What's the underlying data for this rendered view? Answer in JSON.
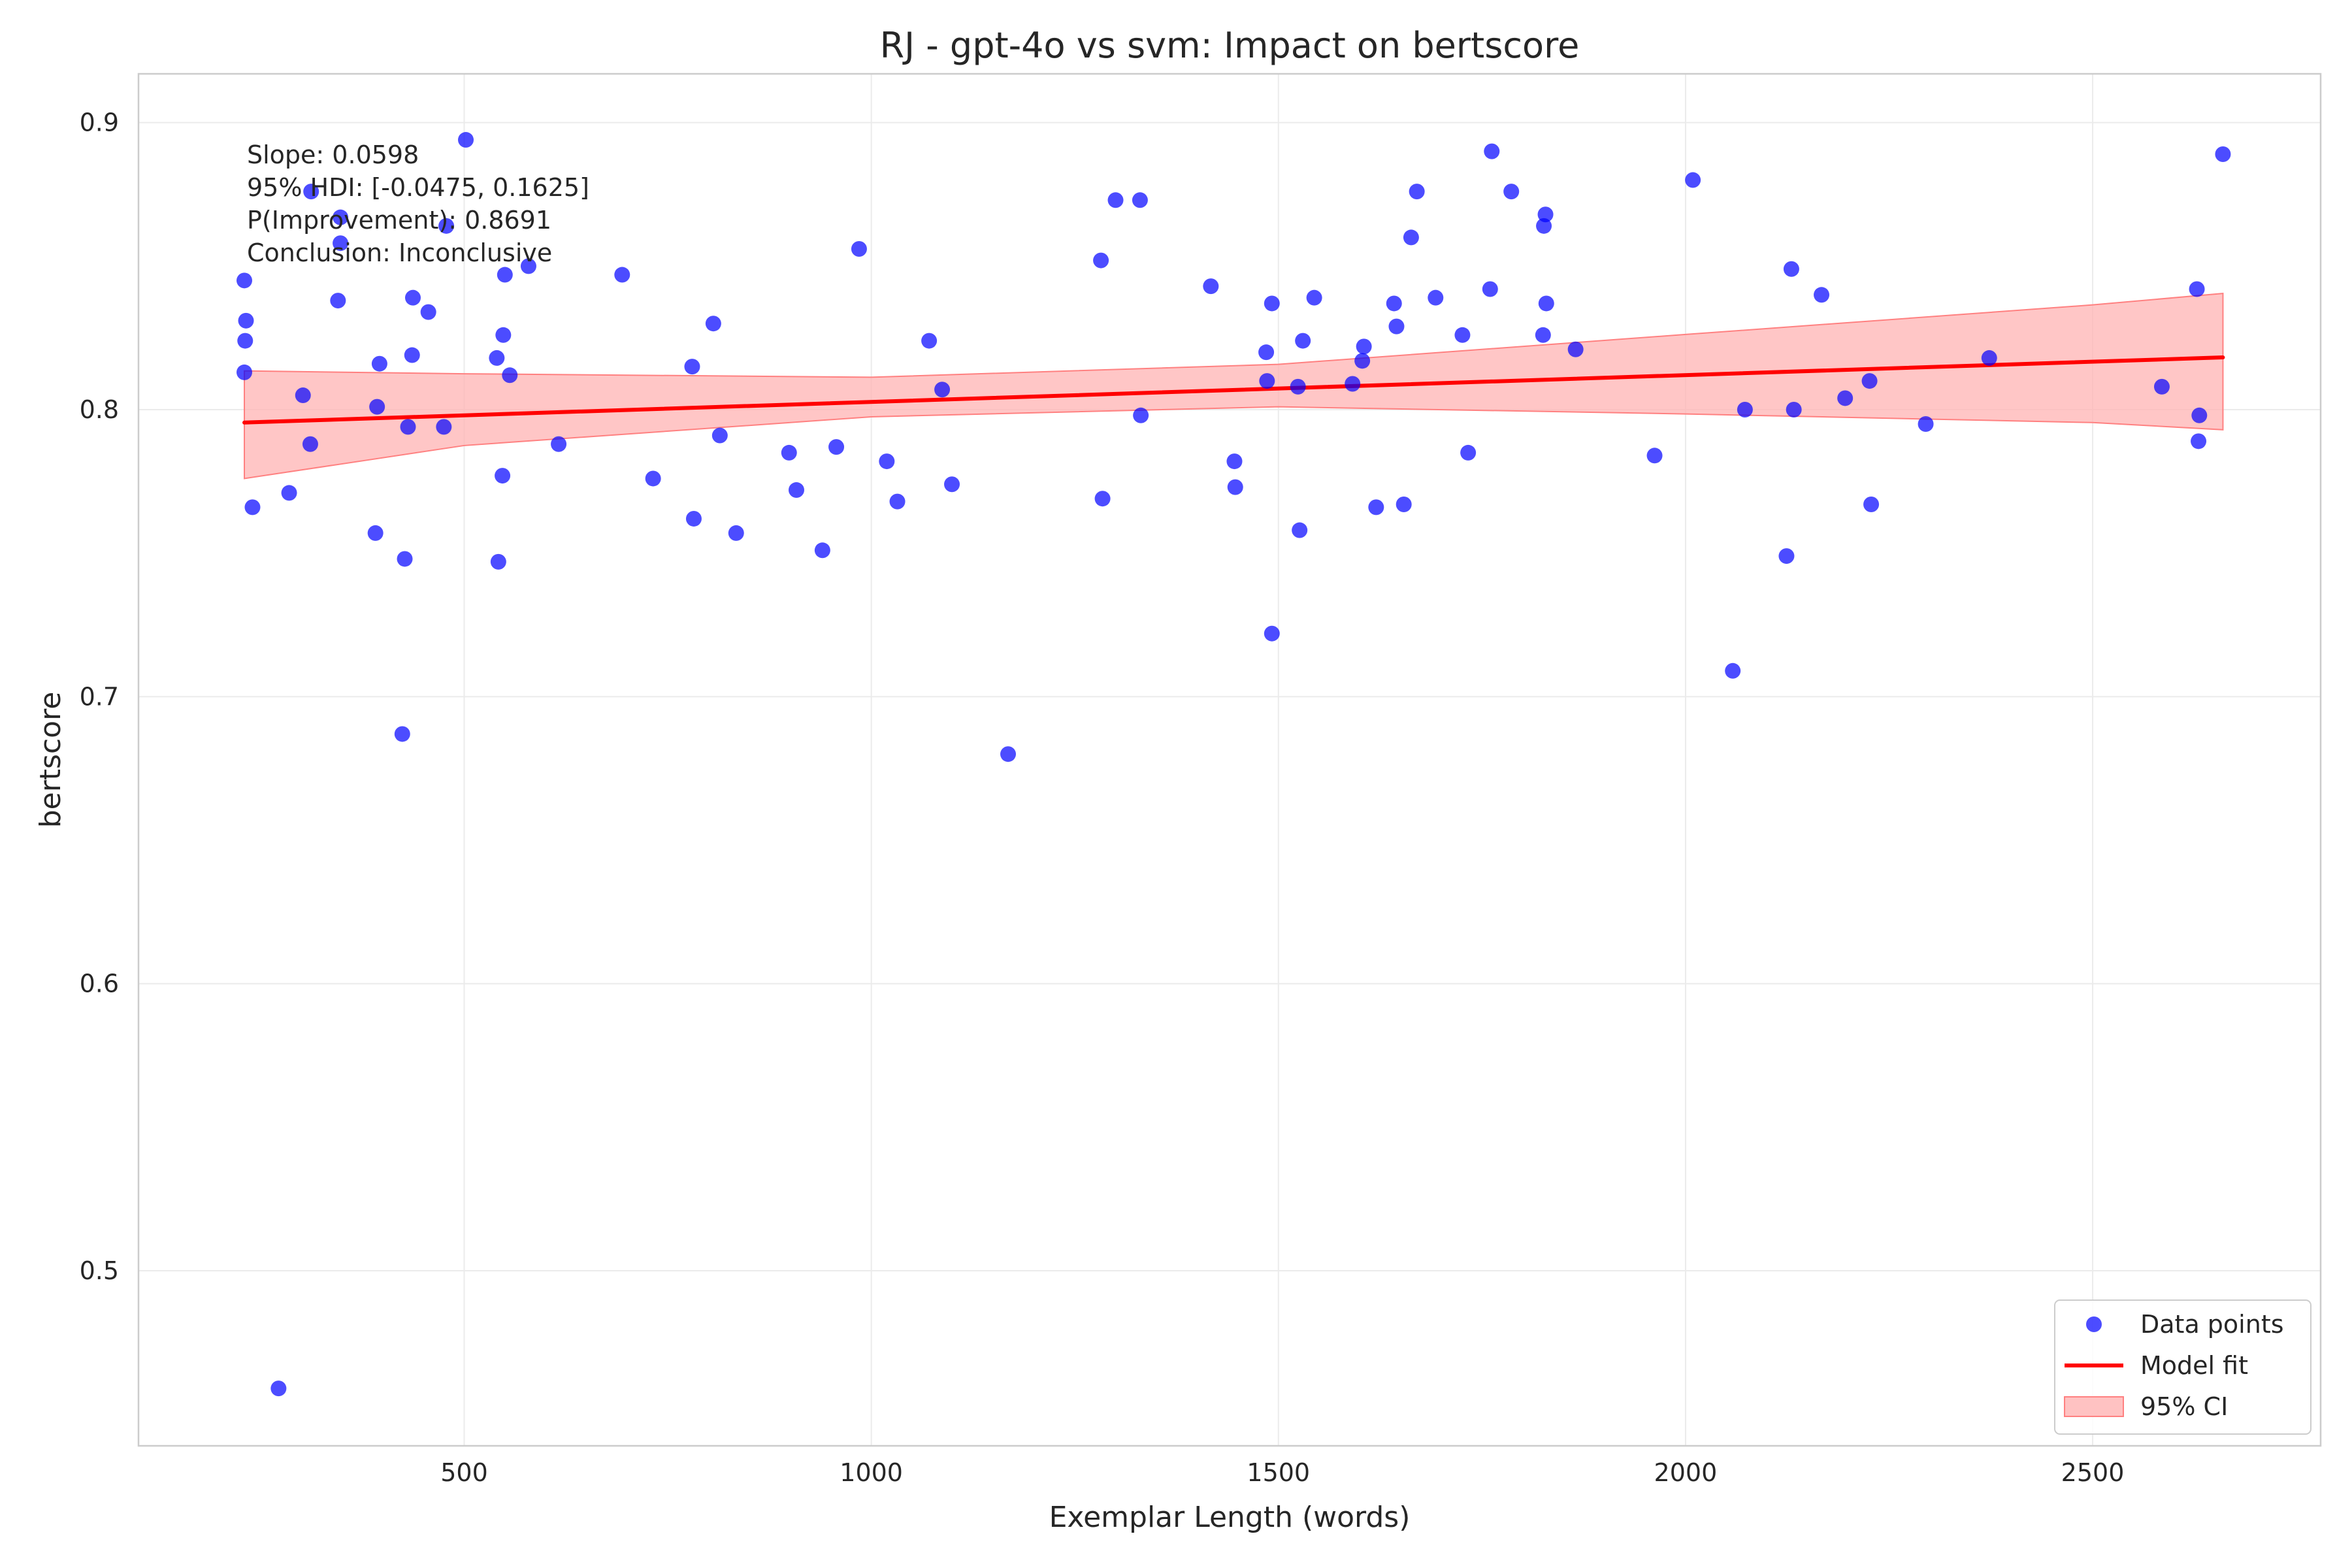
{
  "chart_data": {
    "type": "scatter",
    "title": "RJ - gpt-4o vs svm: Impact on bertscore",
    "xlabel": "Exemplar Length (words)",
    "ylabel": "bertscore",
    "xlim": [
      100,
      2780
    ],
    "ylim": [
      0.439,
      0.917
    ],
    "xticks": [
      500,
      1000,
      1500,
      2000,
      2500
    ],
    "yticks": [
      0.5,
      0.6,
      0.7,
      0.8,
      0.9
    ],
    "xtick_labels": [
      "500",
      "1000",
      "1500",
      "2000",
      "2500"
    ],
    "ytick_labels": [
      "0.5",
      "0.6",
      "0.7",
      "0.8",
      "0.9"
    ],
    "grid": true,
    "legend_position": "bottom-right",
    "colors": {
      "points": "#0000ff",
      "fit": "#ff0000",
      "ci_fill": "#ffb3b3",
      "ci_edge": "#ff8080"
    },
    "legend": [
      {
        "label": "Data points",
        "kind": "marker"
      },
      {
        "label": "Model fit",
        "kind": "line"
      },
      {
        "label": "95% CI",
        "kind": "patch"
      }
    ],
    "annotation": [
      "Slope: 0.0598",
      "95% HDI: [-0.0475, 0.1625]",
      "P(Improvement): 0.8691",
      "Conclusion: Inconclusive"
    ],
    "fit": {
      "x": [
        230,
        2660
      ],
      "y": [
        0.7955,
        0.8182
      ]
    },
    "ci": {
      "x": [
        230,
        500,
        1000,
        1500,
        2000,
        2500,
        2660
      ],
      "upper": [
        0.8135,
        0.8125,
        0.8113,
        0.8158,
        0.8262,
        0.8365,
        0.8405
      ],
      "lower": [
        0.776,
        0.7875,
        0.7975,
        0.801,
        0.7985,
        0.7955,
        0.793
      ]
    },
    "points": [
      {
        "x": 230,
        "y": 0.845
      },
      {
        "x": 232,
        "y": 0.831
      },
      {
        "x": 231,
        "y": 0.824
      },
      {
        "x": 230,
        "y": 0.813
      },
      {
        "x": 240,
        "y": 0.766
      },
      {
        "x": 272,
        "y": 0.459
      },
      {
        "x": 285,
        "y": 0.771
      },
      {
        "x": 302,
        "y": 0.805
      },
      {
        "x": 311,
        "y": 0.788
      },
      {
        "x": 312,
        "y": 0.876
      },
      {
        "x": 345,
        "y": 0.838
      },
      {
        "x": 348,
        "y": 0.858
      },
      {
        "x": 348,
        "y": 0.867
      },
      {
        "x": 391,
        "y": 0.757
      },
      {
        "x": 393,
        "y": 0.801
      },
      {
        "x": 396,
        "y": 0.816
      },
      {
        "x": 424,
        "y": 0.687
      },
      {
        "x": 427,
        "y": 0.748
      },
      {
        "x": 431,
        "y": 0.794
      },
      {
        "x": 436,
        "y": 0.819
      },
      {
        "x": 437,
        "y": 0.839
      },
      {
        "x": 456,
        "y": 0.834
      },
      {
        "x": 475,
        "y": 0.794
      },
      {
        "x": 478,
        "y": 0.864
      },
      {
        "x": 502,
        "y": 0.894
      },
      {
        "x": 540,
        "y": 0.818
      },
      {
        "x": 542,
        "y": 0.747
      },
      {
        "x": 547,
        "y": 0.777
      },
      {
        "x": 548,
        "y": 0.826
      },
      {
        "x": 550,
        "y": 0.847
      },
      {
        "x": 556,
        "y": 0.812
      },
      {
        "x": 579,
        "y": 0.85
      },
      {
        "x": 616,
        "y": 0.788
      },
      {
        "x": 694,
        "y": 0.847
      },
      {
        "x": 732,
        "y": 0.776
      },
      {
        "x": 780,
        "y": 0.815
      },
      {
        "x": 782,
        "y": 0.762
      },
      {
        "x": 806,
        "y": 0.83
      },
      {
        "x": 814,
        "y": 0.791
      },
      {
        "x": 834,
        "y": 0.757
      },
      {
        "x": 899,
        "y": 0.785
      },
      {
        "x": 908,
        "y": 0.772
      },
      {
        "x": 940,
        "y": 0.751
      },
      {
        "x": 957,
        "y": 0.787
      },
      {
        "x": 985,
        "y": 0.856
      },
      {
        "x": 1019,
        "y": 0.782
      },
      {
        "x": 1032,
        "y": 0.768
      },
      {
        "x": 1071,
        "y": 0.824
      },
      {
        "x": 1087,
        "y": 0.807
      },
      {
        "x": 1099,
        "y": 0.774
      },
      {
        "x": 1168,
        "y": 0.68
      },
      {
        "x": 1282,
        "y": 0.852
      },
      {
        "x": 1284,
        "y": 0.769
      },
      {
        "x": 1300,
        "y": 0.873
      },
      {
        "x": 1330,
        "y": 0.873
      },
      {
        "x": 1331,
        "y": 0.798
      },
      {
        "x": 1417,
        "y": 0.843
      },
      {
        "x": 1446,
        "y": 0.782
      },
      {
        "x": 1447,
        "y": 0.773
      },
      {
        "x": 1485,
        "y": 0.82
      },
      {
        "x": 1486,
        "y": 0.81
      },
      {
        "x": 1492,
        "y": 0.837
      },
      {
        "x": 1492,
        "y": 0.722
      },
      {
        "x": 1524,
        "y": 0.808
      },
      {
        "x": 1526,
        "y": 0.758
      },
      {
        "x": 1530,
        "y": 0.824
      },
      {
        "x": 1544,
        "y": 0.839
      },
      {
        "x": 1591,
        "y": 0.809
      },
      {
        "x": 1603,
        "y": 0.817
      },
      {
        "x": 1605,
        "y": 0.822
      },
      {
        "x": 1620,
        "y": 0.766
      },
      {
        "x": 1642,
        "y": 0.837
      },
      {
        "x": 1645,
        "y": 0.829
      },
      {
        "x": 1654,
        "y": 0.767
      },
      {
        "x": 1663,
        "y": 0.86
      },
      {
        "x": 1670,
        "y": 0.876
      },
      {
        "x": 1693,
        "y": 0.839
      },
      {
        "x": 1726,
        "y": 0.826
      },
      {
        "x": 1733,
        "y": 0.785
      },
      {
        "x": 1760,
        "y": 0.842
      },
      {
        "x": 1762,
        "y": 0.89
      },
      {
        "x": 1786,
        "y": 0.876
      },
      {
        "x": 1825,
        "y": 0.826
      },
      {
        "x": 1826,
        "y": 0.864
      },
      {
        "x": 1828,
        "y": 0.868
      },
      {
        "x": 1829,
        "y": 0.837
      },
      {
        "x": 1865,
        "y": 0.821
      },
      {
        "x": 1962,
        "y": 0.784
      },
      {
        "x": 2009,
        "y": 0.88
      },
      {
        "x": 2058,
        "y": 0.709
      },
      {
        "x": 2073,
        "y": 0.8
      },
      {
        "x": 2124,
        "y": 0.749
      },
      {
        "x": 2130,
        "y": 0.849
      },
      {
        "x": 2133,
        "y": 0.8
      },
      {
        "x": 2167,
        "y": 0.84
      },
      {
        "x": 2196,
        "y": 0.804
      },
      {
        "x": 2226,
        "y": 0.81
      },
      {
        "x": 2228,
        "y": 0.767
      },
      {
        "x": 2295,
        "y": 0.795
      },
      {
        "x": 2373,
        "y": 0.818
      },
      {
        "x": 2585,
        "y": 0.808
      },
      {
        "x": 2628,
        "y": 0.842
      },
      {
        "x": 2630,
        "y": 0.789
      },
      {
        "x": 2631,
        "y": 0.798
      },
      {
        "x": 2660,
        "y": 0.889
      }
    ]
  }
}
